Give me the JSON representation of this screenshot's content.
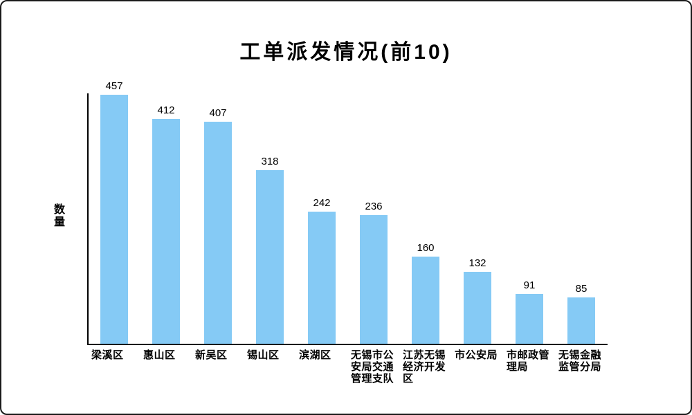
{
  "window": {
    "background": "#ffffff",
    "border_color": "#1a1a1a"
  },
  "chart_data": {
    "type": "bar",
    "title": "工单派发情况(前10)",
    "xlabel": "",
    "ylabel": "数量",
    "categories": [
      "梁溪区",
      "惠山区",
      "新吴区",
      "锡山区",
      "滨湖区",
      "无锡市公安局交通管理支队",
      "江苏无锡经济开发区",
      "市公安局",
      "市邮政管理局",
      "无锡金融监管分局"
    ],
    "categories_wrapped": [
      "梁溪区",
      "惠山区",
      "新吴区",
      "锡山区",
      "滨湖区",
      "无锡市公\n安局交通\n管理支队",
      "江苏无锡\n经济开发\n区",
      "市公安局",
      "市邮政管\n理局",
      "无锡金融\n监管分局"
    ],
    "values": [
      457,
      412,
      407,
      318,
      242,
      236,
      160,
      132,
      91,
      85
    ],
    "value_labels": [
      "457",
      "412",
      "407",
      "318",
      "242",
      "236",
      "160",
      "132",
      "91",
      "85"
    ],
    "ylim": [
      0,
      462
    ],
    "grid": false,
    "legend": null,
    "bar_color": "#85caf5",
    "axis_color": "#000000",
    "text_color": "#000000"
  }
}
